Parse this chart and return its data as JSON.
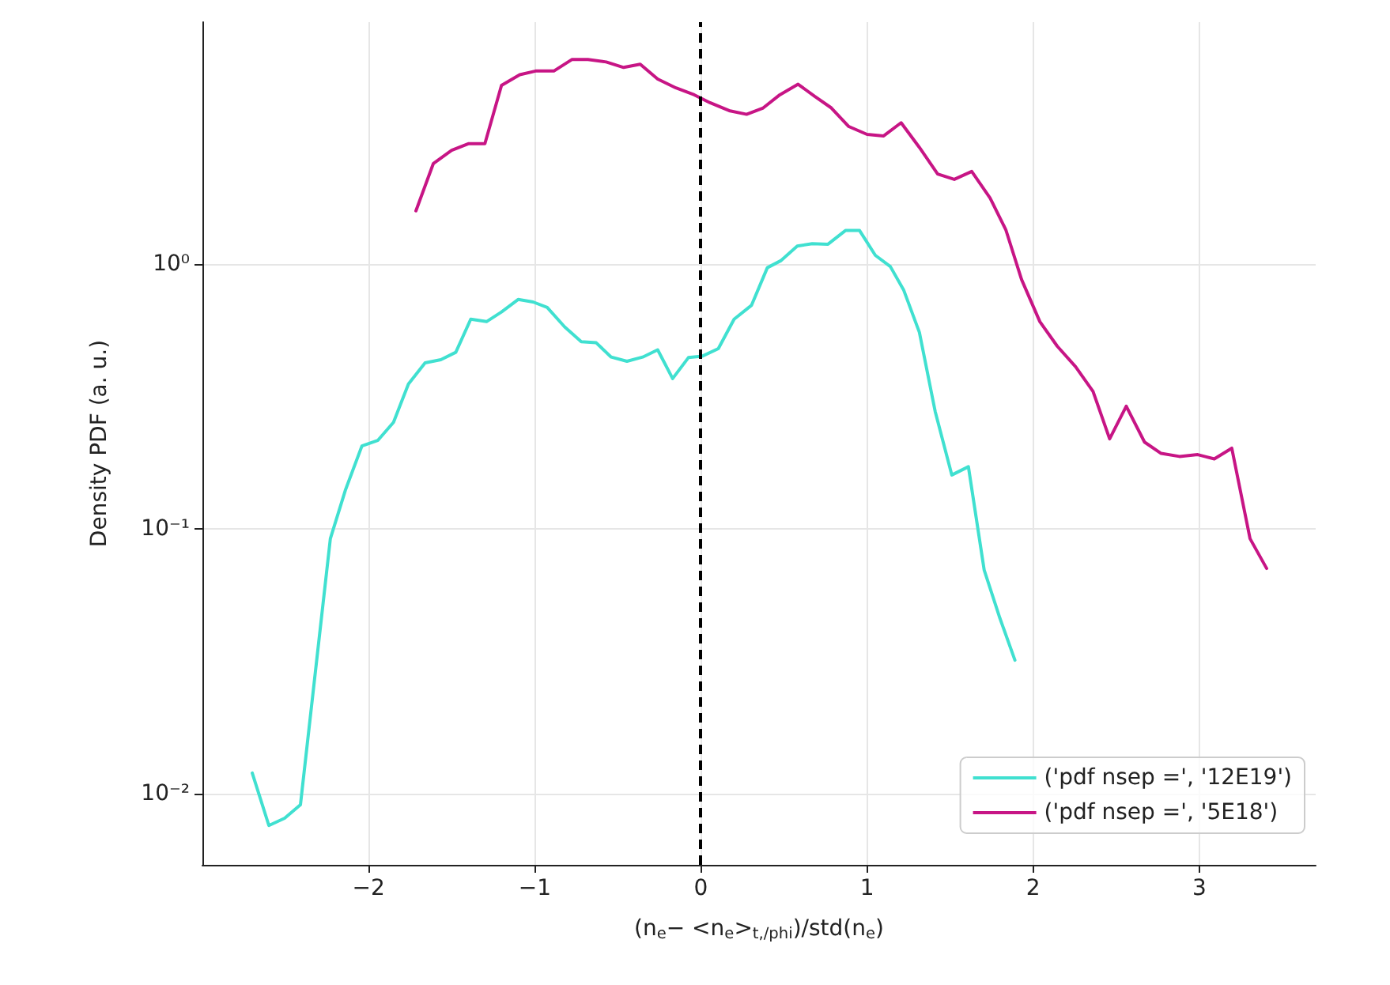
{
  "chart_data": {
    "type": "line",
    "xlabel": "(n$_{e}$− <n$_{e}$>$_{t,/phi}$)/std(n$_{e}$)",
    "ylabel": "Density PDF (a. u.)",
    "series": [
      {
        "name": "('pdf nsep =', '12E19')",
        "color": "#40e0d0",
        "x": [
          -2.7,
          -2.6,
          -2.505,
          -2.41,
          -2.23,
          -2.14,
          -2.04,
          -1.945,
          -1.85,
          -1.76,
          -1.66,
          -1.565,
          -1.475,
          -1.385,
          -1.29,
          -1.2,
          -1.1,
          -1.01,
          -0.925,
          -0.82,
          -0.72,
          -0.63,
          -0.54,
          -0.445,
          -0.35,
          -0.26,
          -0.17,
          -0.075,
          0.01,
          0.105,
          0.2,
          0.305,
          0.4,
          0.48,
          0.58,
          0.67,
          0.765,
          0.87,
          0.955,
          1.05,
          1.14,
          1.22,
          1.315,
          1.41,
          1.51,
          1.61,
          1.705,
          1.8,
          1.89
        ],
        "values": [
          0.012,
          0.0076,
          0.0081,
          0.0091,
          0.092,
          0.14,
          0.206,
          0.216,
          0.253,
          0.353,
          0.424,
          0.436,
          0.465,
          0.62,
          0.607,
          0.66,
          0.736,
          0.72,
          0.687,
          0.58,
          0.51,
          0.505,
          0.446,
          0.43,
          0.446,
          0.475,
          0.37,
          0.444,
          0.45,
          0.48,
          0.62,
          0.7,
          0.97,
          1.03,
          1.17,
          1.195,
          1.19,
          1.34,
          1.34,
          1.08,
          0.98,
          0.8,
          0.553,
          0.278,
          0.16,
          0.172,
          0.07,
          0.046,
          0.032
        ]
      },
      {
        "name": "('pdf nsep =', '5E18')",
        "color": "#c71585",
        "x": [
          -1.715,
          -1.61,
          -1.5,
          -1.4,
          -1.3,
          -1.2,
          -1.09,
          -0.995,
          -0.885,
          -0.775,
          -0.68,
          -0.57,
          -0.465,
          -0.365,
          -0.26,
          -0.15,
          -0.04,
          0.055,
          0.17,
          0.275,
          0.375,
          0.475,
          0.585,
          0.685,
          0.785,
          0.89,
          1.0,
          1.1,
          1.205,
          1.315,
          1.425,
          1.525,
          1.63,
          1.74,
          1.835,
          1.93,
          2.04,
          2.145,
          2.255,
          2.36,
          2.46,
          2.56,
          2.67,
          2.77,
          2.88,
          2.99,
          3.09,
          3.195,
          3.305,
          3.405
        ],
        "values": [
          1.59,
          2.4,
          2.69,
          2.85,
          2.85,
          4.73,
          5.19,
          5.36,
          5.36,
          5.93,
          5.93,
          5.8,
          5.53,
          5.69,
          5.0,
          4.63,
          4.36,
          4.07,
          3.8,
          3.68,
          3.89,
          4.36,
          4.78,
          4.3,
          3.89,
          3.31,
          3.09,
          3.05,
          3.42,
          2.76,
          2.19,
          2.09,
          2.24,
          1.78,
          1.35,
          0.875,
          0.607,
          0.49,
          0.41,
          0.331,
          0.219,
          0.291,
          0.213,
          0.193,
          0.188,
          0.191,
          0.184,
          0.202,
          0.092,
          0.071
        ]
      }
    ],
    "xlim": [
      -3.0,
      3.7
    ],
    "xticks": [
      {
        "value": -2,
        "label": "−2"
      },
      {
        "value": -1,
        "label": "−1"
      },
      0,
      1,
      2,
      3
    ],
    "ylim": [
      0.0054,
      8.2
    ],
    "yticks": [
      {
        "value": 0.01,
        "label": "10⁻²"
      },
      {
        "value": 0.1,
        "label": "10⁻¹"
      },
      {
        "value": 1,
        "label": "10⁰"
      }
    ],
    "log": "y",
    "grid": true,
    "legend": "bottom right",
    "line_style": "solid",
    "marker": "none",
    "ref_lines": [
      {
        "axis": "x",
        "value": 0,
        "color": "#000000",
        "line_style": "dashed"
      }
    ]
  }
}
